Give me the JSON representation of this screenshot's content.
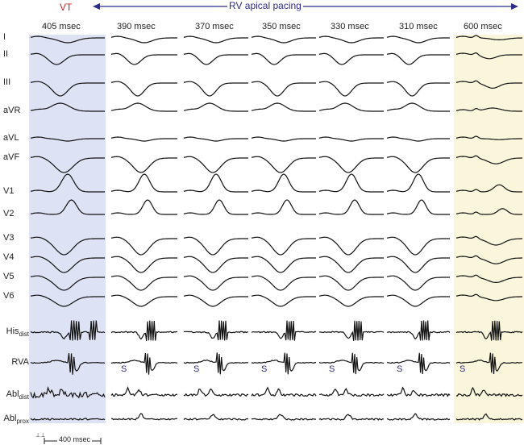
{
  "header": {
    "vt_label": "VT",
    "pacing_label": "RV apical pacing"
  },
  "columns": [
    "405 msec",
    "390 msec",
    "370 msec",
    "350 msec",
    "330 msec",
    "310 msec",
    "600 msec"
  ],
  "leads": [
    {
      "main": "I",
      "sub": ""
    },
    {
      "main": "II",
      "sub": ""
    },
    {
      "main": "III",
      "sub": ""
    },
    {
      "main": "aVR",
      "sub": ""
    },
    {
      "main": "aVL",
      "sub": ""
    },
    {
      "main": "aVF",
      "sub": ""
    },
    {
      "main": "V1",
      "sub": ""
    },
    {
      "main": "V2",
      "sub": ""
    },
    {
      "main": "V3",
      "sub": ""
    },
    {
      "main": "V4",
      "sub": ""
    },
    {
      "main": "V5",
      "sub": ""
    },
    {
      "main": "V6",
      "sub": ""
    },
    {
      "main": "His",
      "sub": "dist"
    },
    {
      "main": "RVA",
      "sub": ""
    },
    {
      "main": "Abl",
      "sub": "dist"
    },
    {
      "main": "Abl",
      "sub": "prox"
    }
  ],
  "stim_marker": "S",
  "scale_bar": "400 msec",
  "colors": {
    "vt_panel": "#dde3f4",
    "sinus_panel": "#faf6dc",
    "vt_text": "#c0282d",
    "pacing": "#2e2a8c"
  }
}
